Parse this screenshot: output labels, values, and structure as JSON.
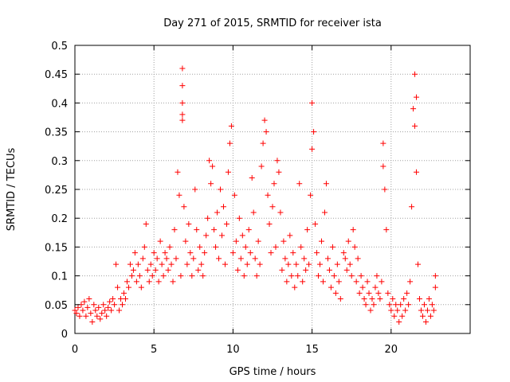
{
  "chart_data": {
    "type": "scatter",
    "title": "Day 271 of 2015, SRMTID for receiver ista",
    "xlabel": "GPS time / hours",
    "ylabel": "SRMTID / TECUs",
    "xlim": [
      0,
      25
    ],
    "ylim": [
      0,
      0.5
    ],
    "x_ticks": [
      "0",
      "5",
      "10",
      "15",
      "20"
    ],
    "x_tick_values": [
      0,
      5,
      10,
      15,
      20
    ],
    "y_ticks": [
      "0",
      "0.05",
      "0.1",
      "0.15",
      "0.2",
      "0.25",
      "0.3",
      "0.35",
      "0.4",
      "0.45",
      "0.5"
    ],
    "y_tick_values": [
      0,
      0.05,
      0.1,
      0.15,
      0.2,
      0.25,
      0.3,
      0.35,
      0.4,
      0.45,
      0.5
    ],
    "grid": true,
    "marker": "+",
    "color": "#ff0000",
    "series": [
      {
        "points": [
          [
            0.0,
            0.04
          ],
          [
            0.1,
            0.035
          ],
          [
            0.2,
            0.045
          ],
          [
            0.3,
            0.03
          ],
          [
            0.4,
            0.05
          ],
          [
            0.5,
            0.04
          ],
          [
            0.6,
            0.055
          ],
          [
            0.7,
            0.03
          ],
          [
            0.8,
            0.045
          ],
          [
            0.9,
            0.06
          ],
          [
            1.0,
            0.035
          ],
          [
            1.1,
            0.02
          ],
          [
            1.2,
            0.05
          ],
          [
            1.3,
            0.04
          ],
          [
            1.4,
            0.03
          ],
          [
            1.5,
            0.045
          ],
          [
            1.6,
            0.025
          ],
          [
            1.7,
            0.035
          ],
          [
            1.8,
            0.05
          ],
          [
            1.9,
            0.04
          ],
          [
            2.0,
            0.03
          ],
          [
            2.1,
            0.045
          ],
          [
            2.2,
            0.055
          ],
          [
            2.3,
            0.04
          ],
          [
            2.4,
            0.06
          ],
          [
            2.5,
            0.05
          ],
          [
            2.6,
            0.12
          ],
          [
            2.7,
            0.08
          ],
          [
            2.8,
            0.04
          ],
          [
            2.9,
            0.06
          ],
          [
            3.0,
            0.05
          ],
          [
            3.1,
            0.07
          ],
          [
            3.2,
            0.06
          ],
          [
            3.3,
            0.09
          ],
          [
            3.4,
            0.08
          ],
          [
            3.5,
            0.12
          ],
          [
            3.6,
            0.1
          ],
          [
            3.7,
            0.11
          ],
          [
            3.8,
            0.14
          ],
          [
            3.9,
            0.09
          ],
          [
            4.0,
            0.12
          ],
          [
            4.1,
            0.1
          ],
          [
            4.2,
            0.08
          ],
          [
            4.3,
            0.13
          ],
          [
            4.4,
            0.15
          ],
          [
            4.5,
            0.19
          ],
          [
            4.6,
            0.11
          ],
          [
            4.7,
            0.09
          ],
          [
            4.8,
            0.12
          ],
          [
            4.9,
            0.1
          ],
          [
            5.0,
            0.14
          ],
          [
            5.1,
            0.11
          ],
          [
            5.2,
            0.13
          ],
          [
            5.3,
            0.09
          ],
          [
            5.4,
            0.16
          ],
          [
            5.5,
            0.12
          ],
          [
            5.6,
            0.1
          ],
          [
            5.7,
            0.14
          ],
          [
            5.8,
            0.13
          ],
          [
            5.9,
            0.11
          ],
          [
            6.0,
            0.15
          ],
          [
            6.1,
            0.12
          ],
          [
            6.2,
            0.09
          ],
          [
            6.3,
            0.18
          ],
          [
            6.4,
            0.13
          ],
          [
            6.5,
            0.28
          ],
          [
            6.6,
            0.24
          ],
          [
            6.7,
            0.1
          ],
          [
            6.8,
            0.46
          ],
          [
            6.8,
            0.43
          ],
          [
            6.8,
            0.4
          ],
          [
            6.8,
            0.38
          ],
          [
            6.8,
            0.37
          ],
          [
            6.9,
            0.22
          ],
          [
            7.0,
            0.16
          ],
          [
            7.1,
            0.12
          ],
          [
            7.2,
            0.19
          ],
          [
            7.3,
            0.14
          ],
          [
            7.4,
            0.1
          ],
          [
            7.5,
            0.13
          ],
          [
            7.6,
            0.25
          ],
          [
            7.7,
            0.18
          ],
          [
            7.8,
            0.11
          ],
          [
            7.9,
            0.15
          ],
          [
            8.0,
            0.12
          ],
          [
            8.1,
            0.1
          ],
          [
            8.2,
            0.14
          ],
          [
            8.3,
            0.17
          ],
          [
            8.4,
            0.2
          ],
          [
            8.5,
            0.3
          ],
          [
            8.6,
            0.26
          ],
          [
            8.7,
            0.29
          ],
          [
            8.8,
            0.18
          ],
          [
            8.9,
            0.15
          ],
          [
            9.0,
            0.21
          ],
          [
            9.1,
            0.13
          ],
          [
            9.2,
            0.25
          ],
          [
            9.3,
            0.17
          ],
          [
            9.4,
            0.22
          ],
          [
            9.5,
            0.12
          ],
          [
            9.6,
            0.19
          ],
          [
            9.7,
            0.28
          ],
          [
            9.8,
            0.33
          ],
          [
            9.9,
            0.36
          ],
          [
            10.0,
            0.14
          ],
          [
            10.1,
            0.24
          ],
          [
            10.2,
            0.16
          ],
          [
            10.3,
            0.11
          ],
          [
            10.4,
            0.2
          ],
          [
            10.5,
            0.13
          ],
          [
            10.6,
            0.17
          ],
          [
            10.7,
            0.1
          ],
          [
            10.8,
            0.15
          ],
          [
            10.9,
            0.12
          ],
          [
            11.0,
            0.18
          ],
          [
            11.1,
            0.14
          ],
          [
            11.2,
            0.27
          ],
          [
            11.3,
            0.21
          ],
          [
            11.4,
            0.13
          ],
          [
            11.5,
            0.1
          ],
          [
            11.6,
            0.16
          ],
          [
            11.7,
            0.12
          ],
          [
            11.8,
            0.29
          ],
          [
            11.9,
            0.33
          ],
          [
            12.0,
            0.37
          ],
          [
            12.1,
            0.35
          ],
          [
            12.2,
            0.24
          ],
          [
            12.3,
            0.19
          ],
          [
            12.4,
            0.14
          ],
          [
            12.5,
            0.22
          ],
          [
            12.6,
            0.26
          ],
          [
            12.7,
            0.15
          ],
          [
            12.8,
            0.3
          ],
          [
            12.9,
            0.28
          ],
          [
            13.0,
            0.21
          ],
          [
            13.1,
            0.11
          ],
          [
            13.2,
            0.16
          ],
          [
            13.3,
            0.13
          ],
          [
            13.4,
            0.09
          ],
          [
            13.5,
            0.12
          ],
          [
            13.6,
            0.17
          ],
          [
            13.7,
            0.1
          ],
          [
            13.8,
            0.14
          ],
          [
            13.9,
            0.08
          ],
          [
            14.0,
            0.12
          ],
          [
            14.1,
            0.1
          ],
          [
            14.2,
            0.26
          ],
          [
            14.3,
            0.15
          ],
          [
            14.4,
            0.09
          ],
          [
            14.5,
            0.13
          ],
          [
            14.6,
            0.11
          ],
          [
            14.7,
            0.18
          ],
          [
            14.8,
            0.12
          ],
          [
            14.9,
            0.24
          ],
          [
            15.0,
            0.32
          ],
          [
            15.0,
            0.4
          ],
          [
            15.1,
            0.35
          ],
          [
            15.2,
            0.19
          ],
          [
            15.3,
            0.14
          ],
          [
            15.4,
            0.1
          ],
          [
            15.5,
            0.12
          ],
          [
            15.6,
            0.16
          ],
          [
            15.7,
            0.09
          ],
          [
            15.8,
            0.21
          ],
          [
            15.9,
            0.26
          ],
          [
            16.0,
            0.13
          ],
          [
            16.1,
            0.11
          ],
          [
            16.2,
            0.08
          ],
          [
            16.3,
            0.15
          ],
          [
            16.4,
            0.1
          ],
          [
            16.5,
            0.07
          ],
          [
            16.6,
            0.12
          ],
          [
            16.7,
            0.09
          ],
          [
            16.8,
            0.06
          ],
          [
            17.0,
            0.14
          ],
          [
            17.1,
            0.13
          ],
          [
            17.2,
            0.11
          ],
          [
            17.3,
            0.16
          ],
          [
            17.4,
            0.12
          ],
          [
            17.5,
            0.1
          ],
          [
            17.6,
            0.18
          ],
          [
            17.7,
            0.15
          ],
          [
            17.8,
            0.09
          ],
          [
            17.9,
            0.13
          ],
          [
            18.0,
            0.07
          ],
          [
            18.1,
            0.1
          ],
          [
            18.2,
            0.08
          ],
          [
            18.3,
            0.06
          ],
          [
            18.4,
            0.05
          ],
          [
            18.5,
            0.09
          ],
          [
            18.6,
            0.07
          ],
          [
            18.7,
            0.04
          ],
          [
            18.8,
            0.06
          ],
          [
            18.9,
            0.05
          ],
          [
            19.0,
            0.08
          ],
          [
            19.1,
            0.1
          ],
          [
            19.2,
            0.07
          ],
          [
            19.3,
            0.06
          ],
          [
            19.4,
            0.09
          ],
          [
            19.5,
            0.33
          ],
          [
            19.5,
            0.29
          ],
          [
            19.6,
            0.25
          ],
          [
            19.7,
            0.18
          ],
          [
            19.8,
            0.07
          ],
          [
            19.9,
            0.05
          ],
          [
            20.0,
            0.04
          ],
          [
            20.1,
            0.06
          ],
          [
            20.2,
            0.03
          ],
          [
            20.3,
            0.05
          ],
          [
            20.4,
            0.04
          ],
          [
            20.5,
            0.02
          ],
          [
            20.6,
            0.05
          ],
          [
            20.7,
            0.03
          ],
          [
            20.8,
            0.06
          ],
          [
            20.9,
            0.04
          ],
          [
            21.0,
            0.07
          ],
          [
            21.1,
            0.05
          ],
          [
            21.2,
            0.09
          ],
          [
            21.3,
            0.22
          ],
          [
            21.4,
            0.39
          ],
          [
            21.5,
            0.45
          ],
          [
            21.5,
            0.36
          ],
          [
            21.6,
            0.28
          ],
          [
            21.6,
            0.41
          ],
          [
            21.7,
            0.12
          ],
          [
            21.8,
            0.06
          ],
          [
            21.9,
            0.04
          ],
          [
            22.0,
            0.03
          ],
          [
            22.1,
            0.05
          ],
          [
            22.2,
            0.02
          ],
          [
            22.3,
            0.04
          ],
          [
            22.4,
            0.06
          ],
          [
            22.5,
            0.03
          ],
          [
            22.6,
            0.05
          ],
          [
            22.7,
            0.04
          ],
          [
            22.8,
            0.08
          ],
          [
            22.8,
            0.1
          ]
        ]
      }
    ]
  }
}
